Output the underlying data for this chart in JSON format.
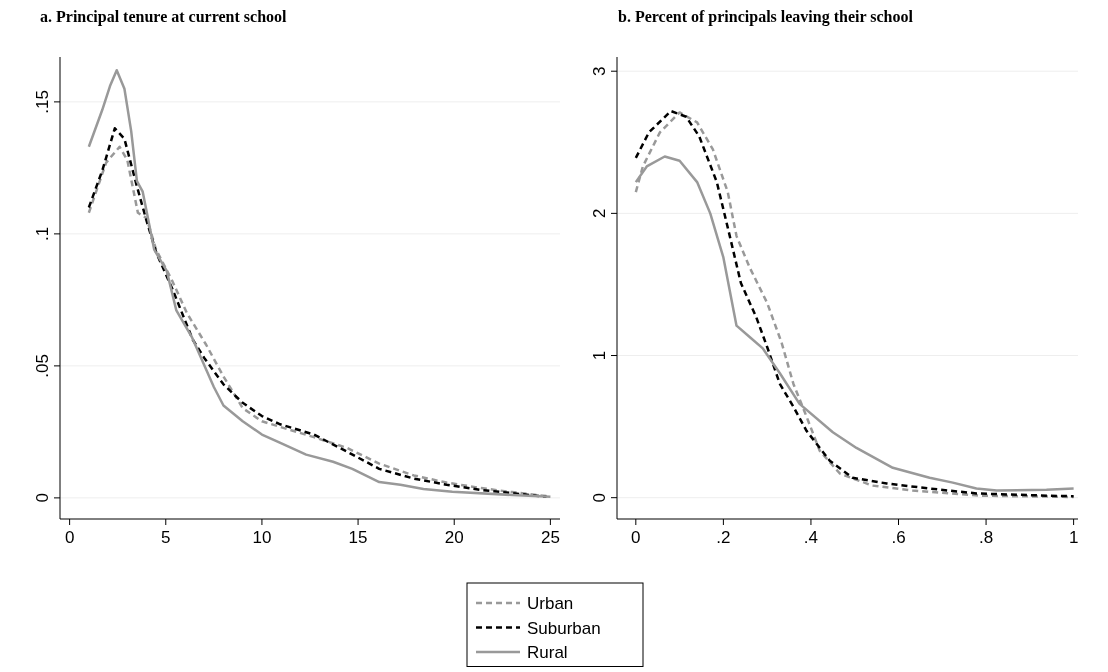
{
  "chart_data": [
    {
      "type": "line",
      "title": "a. Principal tenure at current school",
      "xlim": [
        -0.5,
        25.5
      ],
      "ylim": [
        -0.008,
        0.167
      ],
      "xticks": [
        0,
        5,
        10,
        15,
        20,
        25
      ],
      "yticks": [
        {
          "value": 0,
          "label": "0"
        },
        {
          "value": 0.05,
          "label": ".05"
        },
        {
          "value": 0.1,
          "label": ".1"
        },
        {
          "value": 0.15,
          "label": ".15"
        }
      ],
      "grid": "y",
      "legend": "bottom",
      "series": [
        {
          "name": "Urban",
          "color": "#999999",
          "line_style": "dashed",
          "x": [
            1,
            1.9,
            2.6,
            3,
            3.55,
            4,
            4.5,
            5.35,
            6.1,
            7.1,
            8,
            9,
            10,
            10.9,
            12.7,
            14.4,
            16.1,
            17.9,
            19.6,
            21.4,
            23,
            25
          ],
          "values": [
            0.108,
            0.127,
            0.133,
            0.128,
            0.108,
            0.106,
            0.094,
            0.082,
            0.07,
            0.058,
            0.046,
            0.034,
            0.029,
            0.027,
            0.023,
            0.019,
            0.013,
            0.0085,
            0.0058,
            0.0037,
            0.0022,
            0.0005
          ]
        },
        {
          "name": "Suburban",
          "color": "#000000",
          "line_style": "dashed",
          "x": [
            1,
            1.7,
            2.35,
            2.85,
            3.5,
            4,
            4.5,
            5.35,
            6.4,
            7,
            8,
            9,
            10,
            10.9,
            12.7,
            14.4,
            16.1,
            17.9,
            19.6,
            21.4,
            23,
            24.8
          ],
          "values": [
            0.11,
            0.124,
            0.14,
            0.136,
            0.118,
            0.105,
            0.093,
            0.079,
            0.06,
            0.053,
            0.043,
            0.036,
            0.031,
            0.028,
            0.024,
            0.0176,
            0.011,
            0.0073,
            0.005,
            0.003,
            0.0018,
            0.0004
          ]
        },
        {
          "name": "Rural",
          "color": "#999999",
          "line_style": "solid",
          "x": [
            1,
            1.7,
            2.1,
            2.45,
            2.85,
            3.2,
            3.5,
            3.8,
            4.4,
            5.05,
            5.55,
            6.35,
            7.5,
            8,
            9,
            10,
            10.9,
            12.3,
            13.7,
            14.7,
            16.1,
            17.2,
            18.4,
            19.9,
            23,
            25
          ],
          "values": [
            0.133,
            0.147,
            0.156,
            0.162,
            0.155,
            0.139,
            0.12,
            0.116,
            0.094,
            0.086,
            0.071,
            0.061,
            0.042,
            0.035,
            0.029,
            0.024,
            0.021,
            0.0164,
            0.0137,
            0.011,
            0.006,
            0.005,
            0.0034,
            0.0023,
            0.0011,
            0.0004
          ]
        }
      ]
    },
    {
      "type": "line",
      "title": "b. Percent of principals leaving their school",
      "xlim": [
        -0.043,
        1.01
      ],
      "ylim": [
        -0.15,
        3.1
      ],
      "xticks": [
        {
          "value": 0,
          "label": "0"
        },
        {
          "value": 0.2,
          "label": ".2"
        },
        {
          "value": 0.4,
          "label": ".4"
        },
        {
          "value": 0.6,
          "label": ".6"
        },
        {
          "value": 0.8,
          "label": ".8"
        },
        {
          "value": 1,
          "label": "1"
        }
      ],
      "yticks": [
        0,
        1,
        2,
        3
      ],
      "grid": "y",
      "legend": "bottom",
      "series": [
        {
          "name": "Urban",
          "color": "#999999",
          "line_style": "dashed",
          "x": [
            0,
            0.016,
            0.055,
            0.1,
            0.14,
            0.176,
            0.21,
            0.23,
            0.26,
            0.3,
            0.333,
            0.36,
            0.39,
            0.42,
            0.466,
            0.54,
            0.632,
            0.785,
            1
          ],
          "values": [
            2.15,
            2.33,
            2.57,
            2.71,
            2.64,
            2.45,
            2.15,
            1.84,
            1.62,
            1.37,
            1.09,
            0.8,
            0.57,
            0.33,
            0.17,
            0.085,
            0.05,
            0.014,
            0.005
          ]
        },
        {
          "name": "Suburban",
          "color": "#000000",
          "line_style": "dashed",
          "x": [
            0,
            0.03,
            0.08,
            0.115,
            0.145,
            0.185,
            0.21,
            0.24,
            0.275,
            0.3,
            0.329,
            0.36,
            0.39,
            0.443,
            0.495,
            0.573,
            0.671,
            0.778,
            0.94,
            1
          ],
          "values": [
            2.39,
            2.57,
            2.72,
            2.68,
            2.54,
            2.22,
            1.9,
            1.51,
            1.27,
            1.06,
            0.8,
            0.64,
            0.47,
            0.26,
            0.14,
            0.1,
            0.064,
            0.03,
            0.014,
            0.01
          ]
        },
        {
          "name": "Rural",
          "color": "#999999",
          "line_style": "solid",
          "x": [
            0,
            0.025,
            0.066,
            0.1,
            0.14,
            0.17,
            0.2,
            0.23,
            0.26,
            0.29,
            0.329,
            0.374,
            0.45,
            0.504,
            0.587,
            0.671,
            0.724,
            0.778,
            0.824,
            0.938,
            1
          ],
          "values": [
            2.22,
            2.33,
            2.4,
            2.37,
            2.22,
            2,
            1.69,
            1.21,
            1.13,
            1.05,
            0.875,
            0.66,
            0.46,
            0.35,
            0.21,
            0.14,
            0.106,
            0.064,
            0.05,
            0.055,
            0.065
          ]
        }
      ]
    }
  ]
}
